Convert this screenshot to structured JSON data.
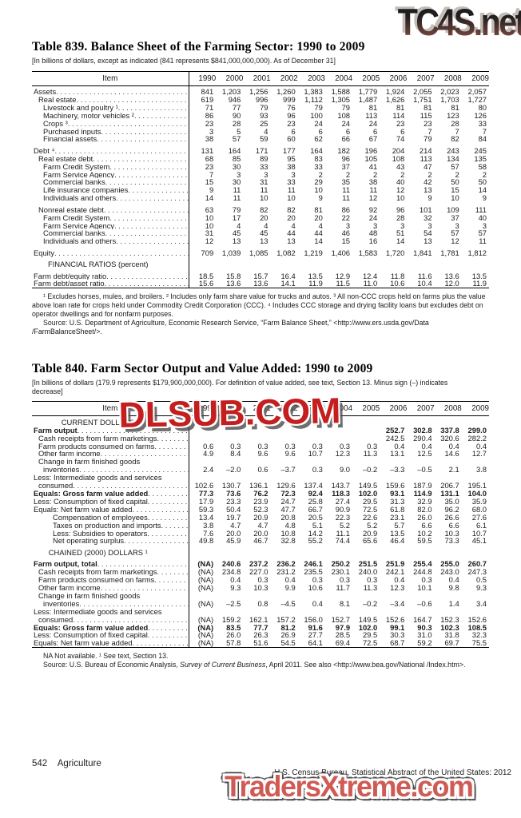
{
  "watermarks": {
    "top": "TC4S.net",
    "middle": "DLSUB.COM",
    "bottom": "TradersXtreme.com",
    "top_color": "#3b2f2c",
    "middle_color": "#c41e1e",
    "bottom_color": "#d05b55"
  },
  "table839": {
    "title": "Table 839. Balance Sheet of the Farming Sector: 1990 to 2009",
    "bracket": "[In billions of dollars, except as indicated (841 represents $841,000,000,000). As of December 31]",
    "item_header": "Item",
    "years": [
      "1990",
      "2000",
      "2001",
      "2002",
      "2003",
      "2004",
      "2005",
      "2006",
      "2007",
      "2008",
      "2009"
    ],
    "rows": [
      {
        "label": "Assets",
        "indent": 0,
        "values": [
          "841",
          "1,203",
          "1,256",
          "1,260",
          "1,383",
          "1,588",
          "1,779",
          "1,924",
          "2,055",
          "2,023",
          "2,057"
        ]
      },
      {
        "label": "Real estate",
        "indent": 1,
        "values": [
          "619",
          "946",
          "996",
          "999",
          "1,112",
          "1,305",
          "1,487",
          "1,626",
          "1,751",
          "1,703",
          "1,727"
        ]
      },
      {
        "label": "Livestock and poultry ¹",
        "indent": 2,
        "values": [
          "71",
          "77",
          "79",
          "76",
          "79",
          "79",
          "81",
          "81",
          "81",
          "81",
          "80"
        ]
      },
      {
        "label": "Machinery, motor vehicles ²",
        "indent": 2,
        "values": [
          "86",
          "90",
          "93",
          "96",
          "100",
          "108",
          "113",
          "114",
          "115",
          "123",
          "126"
        ]
      },
      {
        "label": "Crops ³",
        "indent": 2,
        "values": [
          "23",
          "28",
          "25",
          "23",
          "24",
          "24",
          "24",
          "23",
          "23",
          "28",
          "33"
        ]
      },
      {
        "label": "Purchased inputs",
        "indent": 2,
        "values": [
          "3",
          "5",
          "4",
          "6",
          "6",
          "6",
          "6",
          "6",
          "7",
          "7",
          "7"
        ]
      },
      {
        "label": "Financial assets",
        "indent": 2,
        "values": [
          "38",
          "57",
          "59",
          "60",
          "62",
          "66",
          "67",
          "74",
          "79",
          "82",
          "84"
        ]
      },
      {
        "label": "Debt ⁴",
        "indent": 0,
        "gap": true,
        "values": [
          "131",
          "164",
          "171",
          "177",
          "164",
          "182",
          "196",
          "204",
          "214",
          "243",
          "245"
        ]
      },
      {
        "label": "Real estate debt",
        "indent": 1,
        "values": [
          "68",
          "85",
          "89",
          "95",
          "83",
          "96",
          "105",
          "108",
          "113",
          "134",
          "135"
        ]
      },
      {
        "label": "Farm Credit System",
        "indent": 2,
        "values": [
          "23",
          "30",
          "33",
          "38",
          "33",
          "37",
          "41",
          "43",
          "47",
          "57",
          "58"
        ]
      },
      {
        "label": "Farm Service Agency",
        "indent": 2,
        "values": [
          "7",
          "3",
          "3",
          "3",
          "2",
          "2",
          "2",
          "2",
          "2",
          "2",
          "2"
        ]
      },
      {
        "label": "Commercial banks",
        "indent": 2,
        "values": [
          "15",
          "30",
          "31",
          "33",
          "29",
          "35",
          "38",
          "40",
          "42",
          "50",
          "50"
        ]
      },
      {
        "label": "Life insurance companies",
        "indent": 2,
        "values": [
          "9",
          "11",
          "11",
          "11",
          "10",
          "11",
          "11",
          "12",
          "13",
          "15",
          "14"
        ]
      },
      {
        "label": "Individuals and others",
        "indent": 2,
        "values": [
          "14",
          "11",
          "10",
          "10",
          "9",
          "11",
          "12",
          "10",
          "9",
          "10",
          "9"
        ]
      },
      {
        "label": "Nonreal estate debt",
        "indent": 1,
        "gap": true,
        "values": [
          "63",
          "79",
          "82",
          "82",
          "81",
          "86",
          "92",
          "96",
          "101",
          "109",
          "111"
        ]
      },
      {
        "label": "Farm Credit System",
        "indent": 2,
        "values": [
          "10",
          "17",
          "20",
          "20",
          "20",
          "22",
          "24",
          "28",
          "32",
          "37",
          "40"
        ]
      },
      {
        "label": "Farm Service Agency",
        "indent": 2,
        "values": [
          "10",
          "4",
          "4",
          "4",
          "4",
          "3",
          "3",
          "3",
          "3",
          "3",
          "3"
        ]
      },
      {
        "label": "Commercial banks",
        "indent": 2,
        "values": [
          "31",
          "45",
          "45",
          "44",
          "44",
          "46",
          "48",
          "51",
          "54",
          "57",
          "57"
        ]
      },
      {
        "label": "Individuals and others",
        "indent": 2,
        "values": [
          "12",
          "13",
          "13",
          "13",
          "14",
          "15",
          "16",
          "14",
          "13",
          "12",
          "11"
        ]
      },
      {
        "label": "Equity",
        "indent": 0,
        "gap": true,
        "values": [
          "709",
          "1,039",
          "1,085",
          "1,082",
          "1,219",
          "1,406",
          "1,583",
          "1,720",
          "1,841",
          "1,781",
          "1,812"
        ]
      },
      {
        "type": "section",
        "label": "FINANCIAL RATIOS (percent)",
        "gap": true
      },
      {
        "label": "Farm debt/equity ratio",
        "indent": 0,
        "gap": true,
        "values": [
          "18.5",
          "15.8",
          "15.7",
          "16.4",
          "13.5",
          "12.9",
          "12.4",
          "11.8",
          "11.6",
          "13.6",
          "13.5"
        ]
      },
      {
        "label": "Farm debt/asset ratio",
        "indent": 0,
        "values": [
          "15.6",
          "13.6",
          "13.6",
          "14.1",
          "11.9",
          "11.5",
          "11.0",
          "10.6",
          "10.4",
          "12.0",
          "11.9"
        ]
      }
    ],
    "footnote": "¹ Excludes horses, mules, and broilers. ² Includes only farm share value for trucks and autos. ³ All non-CCC crops held on farms plus the value above loan rate for crops held under Commodity Credit Corporation (CCC). ⁴ Includes CCC storage and drying facility loans but excludes debt on operator dwellings and for nonfarm purposes.",
    "source": "Source: U.S. Department of Agriculture, Economic Research Service, “Farm Balance Sheet,” <http://www.ers.usda.gov/Data /FarmBalanceSheet/>."
  },
  "table840": {
    "title": "Table 840. Farm Sector Output and Value Added: 1990 to 2009",
    "bracket": "[In billions of dollars (179.9 represents $179,900,000,000). For definition of value added, see text, Section 13. Minus sign (–) indicates decrease]",
    "item_header": "Item",
    "years": [
      "1990",
      "2000",
      "2001",
      "2002",
      "2003",
      "2004",
      "2005",
      "2006",
      "2007",
      "2008",
      "2009"
    ],
    "rows": [
      {
        "type": "section",
        "label": "CURRENT DOLLARS"
      },
      {
        "label": "Farm output",
        "indent": 0,
        "bold": true,
        "values": [
          "",
          "",
          "",
          "",
          "",
          "",
          "",
          "252.7",
          "302.8",
          "337.8",
          "299.0"
        ]
      },
      {
        "label": "Cash receipts from farm marketings",
        "indent": 1,
        "values": [
          "",
          "",
          "",
          "",
          "",
          "",
          "",
          "242.5",
          "290.4",
          "320.6",
          "282.2"
        ]
      },
      {
        "label": "Farm products consumed on farms",
        "indent": 1,
        "values": [
          "0.6",
          "0.3",
          "0.3",
          "0.3",
          "0.3",
          "0.3",
          "0.3",
          "0.4",
          "0.4",
          "0.4",
          "0.4"
        ]
      },
      {
        "label": "Other farm income",
        "indent": 1,
        "values": [
          "4.9",
          "8.4",
          "9.6",
          "9.6",
          "10.7",
          "12.3",
          "11.3",
          "13.1",
          "12.5",
          "14.6",
          "12.7"
        ]
      },
      {
        "pre": "Change in farm finished goods",
        "pre_indent": 1,
        "label": "inventories",
        "indent": 2,
        "values": [
          "2.4",
          "–2.0",
          "0.6",
          "–3.7",
          "0.3",
          "9.0",
          "–0.2",
          "–3.3",
          "–0.5",
          "2.1",
          "3.8"
        ]
      },
      {
        "pre": "Less: Intermediate goods and services",
        "pre_indent": 0,
        "label": "consumed",
        "indent": 1,
        "values": [
          "102.6",
          "130.7",
          "136.1",
          "129.6",
          "137.4",
          "143.7",
          "149.5",
          "159.6",
          "187.9",
          "206.7",
          "195.1"
        ]
      },
      {
        "label": "Equals: Gross farm value added",
        "indent": 0,
        "bold": true,
        "values": [
          "77.3",
          "73.6",
          "76.2",
          "72.3",
          "92.4",
          "118.3",
          "102.0",
          "93.1",
          "114.9",
          "131.1",
          "104.0"
        ]
      },
      {
        "label": "Less: Consumption of fixed capital",
        "indent": 0,
        "values": [
          "17.9",
          "23.3",
          "23.9",
          "24.7",
          "25.8",
          "27.4",
          "29.5",
          "31.3",
          "32.9",
          "35.0",
          "35.9"
        ]
      },
      {
        "label": "Equals: Net farm value added",
        "indent": 0,
        "values": [
          "59.3",
          "50.4",
          "52.3",
          "47.7",
          "66.7",
          "90.9",
          "72.5",
          "61.8",
          "82.0",
          "96.2",
          "68.0"
        ]
      },
      {
        "label": "Compensation of employees",
        "indent": 4,
        "values": [
          "13.4",
          "19.7",
          "20.9",
          "20.8",
          "20.5",
          "22.3",
          "22.6",
          "23.1",
          "26.0",
          "26.6",
          "27.6"
        ]
      },
      {
        "label": "Taxes on production and imports",
        "indent": 4,
        "values": [
          "3.8",
          "4.7",
          "4.7",
          "4.8",
          "5.1",
          "5.2",
          "5.2",
          "5.7",
          "6.6",
          "6.6",
          "6.1"
        ]
      },
      {
        "label": "Less: Subsidies to operators",
        "indent": 4,
        "values": [
          "7.6",
          "20.0",
          "20.0",
          "10.8",
          "14.2",
          "11.1",
          "20.9",
          "13.5",
          "10.2",
          "10.3",
          "10.7"
        ]
      },
      {
        "label": "Net operating surplus",
        "indent": 4,
        "values": [
          "49.8",
          "45.9",
          "46.7",
          "32.8",
          "55.2",
          "74.4",
          "65.6",
          "46.4",
          "59.5",
          "73.3",
          "45.1"
        ]
      },
      {
        "type": "section",
        "label": "CHAINED (2000) DOLLARS ¹",
        "gap": true
      },
      {
        "label": "Farm output, total",
        "indent": 0,
        "bold": true,
        "gap": true,
        "values": [
          "(NA)",
          "240.6",
          "237.2",
          "236.2",
          "246.1",
          "250.2",
          "251.5",
          "251.9",
          "255.4",
          "255.0",
          "260.7"
        ]
      },
      {
        "label": "Cash receipts from farm marketings",
        "indent": 1,
        "values": [
          "(NA)",
          "234.8",
          "227.0",
          "231.2",
          "235.5",
          "230.1",
          "240.0",
          "242.1",
          "244.8",
          "243.0",
          "247.3"
        ]
      },
      {
        "label": "Farm products consumed on farms",
        "indent": 1,
        "values": [
          "(NA)",
          "0.4",
          "0.3",
          "0.4",
          "0.3",
          "0.3",
          "0.3",
          "0.4",
          "0.3",
          "0.4",
          "0.5"
        ]
      },
      {
        "label": "Other farm income",
        "indent": 1,
        "values": [
          "(NA)",
          "9.3",
          "10.3",
          "9.9",
          "10.6",
          "11.7",
          "11.3",
          "12.3",
          "10.1",
          "9.8",
          "9.3"
        ]
      },
      {
        "pre": "Change in farm finished goods",
        "pre_indent": 1,
        "label": "inventories",
        "indent": 2,
        "values": [
          "(NA)",
          "–2.5",
          "0.8",
          "–4.5",
          "0.4",
          "8.1",
          "–0.2",
          "–3.4",
          "–0.6",
          "1.4",
          "3.4"
        ]
      },
      {
        "pre": "Less: Intermediate goods and services",
        "pre_indent": 0,
        "label": "consumed",
        "indent": 1,
        "values": [
          "(NA)",
          "159.2",
          "162.1",
          "157.2",
          "156.0",
          "152.7",
          "149.5",
          "152.6",
          "164.7",
          "152.3",
          "152.6"
        ]
      },
      {
        "label": "Equals: Gross farm value added",
        "indent": 0,
        "bold": true,
        "values": [
          "(NA)",
          "83.5",
          "77.7",
          "81.2",
          "91.6",
          "97.9",
          "102.0",
          "99.1",
          "90.3",
          "102.3",
          "108.5"
        ]
      },
      {
        "label": "Less: Consumption of fixed capital",
        "indent": 0,
        "values": [
          "(NA)",
          "26.0",
          "26.3",
          "26.9",
          "27.7",
          "28.5",
          "29.5",
          "30.3",
          "31.0",
          "31.8",
          "32.3"
        ]
      },
      {
        "label": "Equals: Net farm value added",
        "indent": 0,
        "values": [
          "(NA)",
          "57.8",
          "51.6",
          "54.5",
          "64.1",
          "69.4",
          "72.5",
          "68.7",
          "59.2",
          "69.7",
          "75.5"
        ]
      }
    ],
    "note": "NA Not available. ¹ See text, Section 13.",
    "source_pre": "Source: U.S. Bureau of Economic Analysis, ",
    "source_italic": "Survey of Current Business",
    "source_post": ", April 2011. See also <http://www.bea.gov/National /Index.htm>."
  },
  "footer": {
    "page_number": "542",
    "section_name": "Agriculture",
    "source_line": "U.S. Census Bureau, Statistical Abstract of the United States: 2012"
  }
}
